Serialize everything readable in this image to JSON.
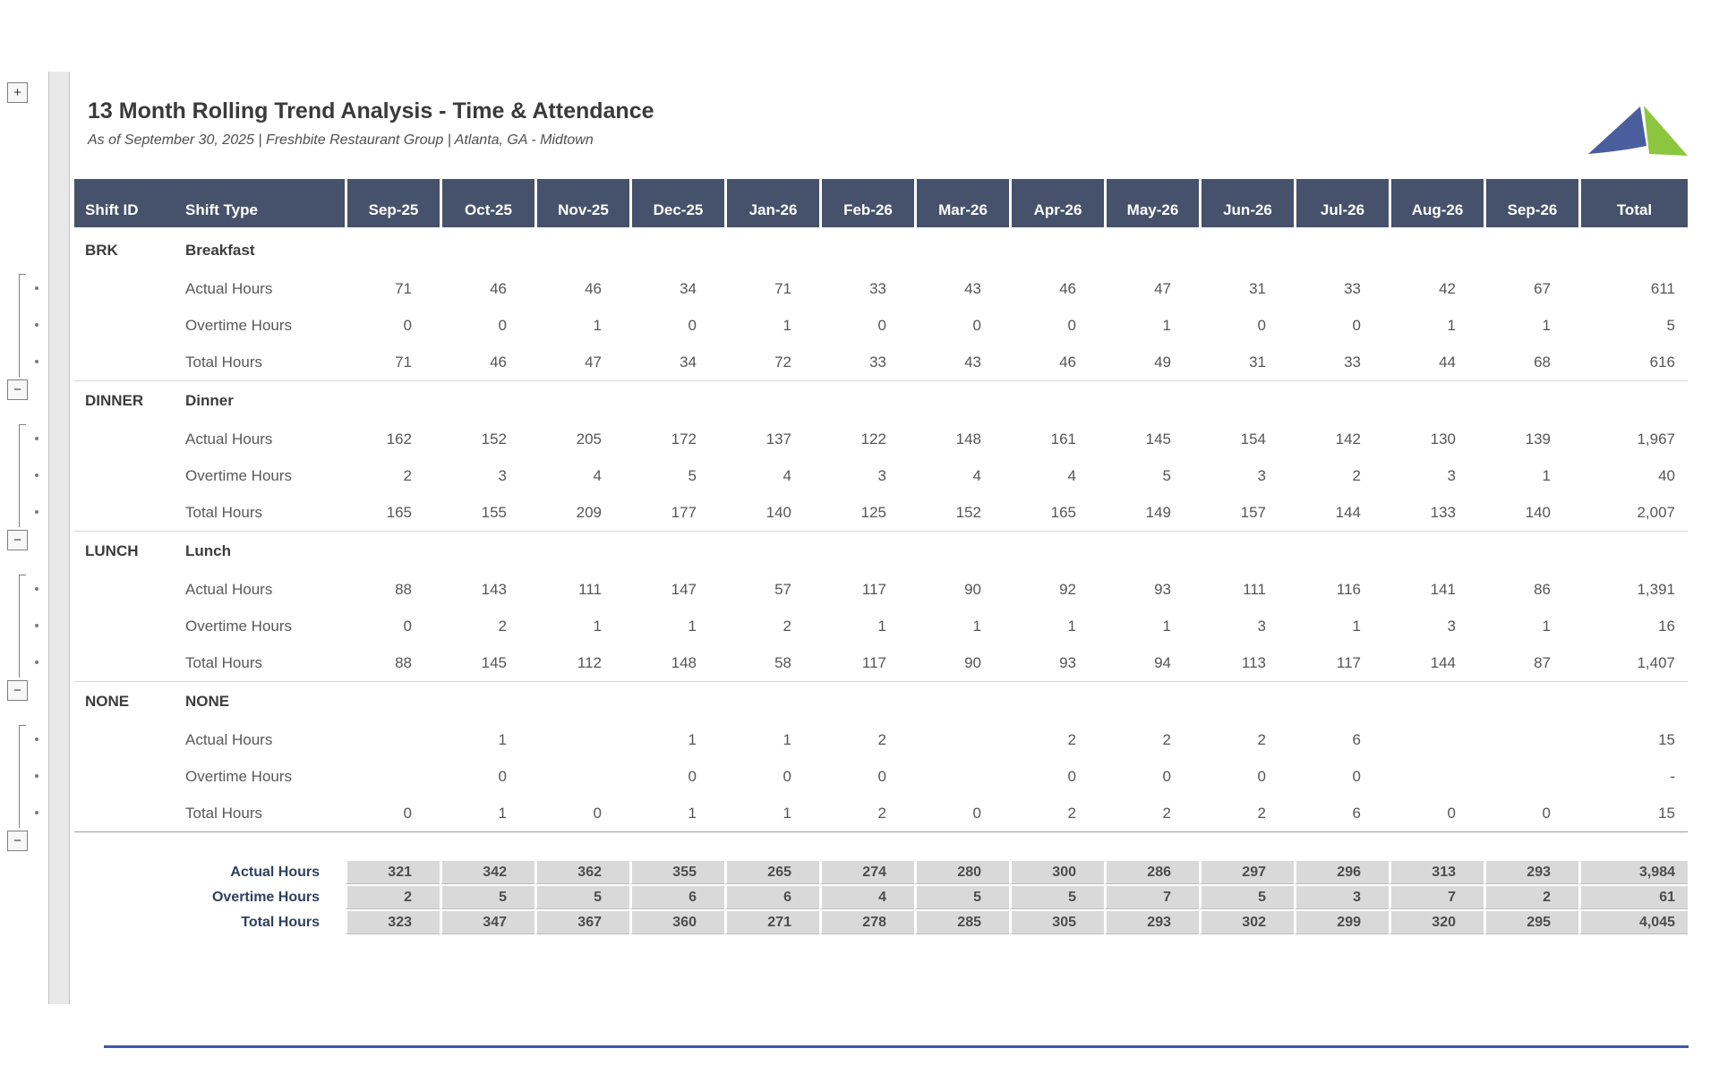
{
  "report": {
    "title": "13 Month Rolling Trend Analysis - Time & Attendance",
    "subtitle": "As of September 30, 2025 | Freshbite Restaurant Group | Atlanta, GA - Midtown"
  },
  "colors": {
    "header_bg": "#46526B",
    "summary_cell_bg": "#D9D9D9",
    "summary_label_text": "#2F4060",
    "logo_blue": "#4A5E9E",
    "logo_green": "#8CC63E",
    "bottom_rule_blue": "#3E5CA6"
  },
  "outline": {
    "expand_label": "+",
    "collapse_label": "−"
  },
  "table": {
    "header": {
      "shift_id": "Shift ID",
      "shift_type": "Shift Type",
      "months": [
        "Sep-25",
        "Oct-25",
        "Nov-25",
        "Dec-25",
        "Jan-26",
        "Feb-26",
        "Mar-26",
        "Apr-26",
        "May-26",
        "Jun-26",
        "Jul-26",
        "Aug-26",
        "Sep-26"
      ],
      "total": "Total"
    },
    "sections": [
      {
        "id": "BRK",
        "name": "Breakfast",
        "rows": [
          {
            "label": "Actual Hours",
            "values": [
              "71",
              "46",
              "46",
              "34",
              "71",
              "33",
              "43",
              "46",
              "47",
              "31",
              "33",
              "42",
              "67"
            ],
            "total": "611"
          },
          {
            "label": "Overtime Hours",
            "values": [
              "0",
              "0",
              "1",
              "0",
              "1",
              "0",
              "0",
              "0",
              "1",
              "0",
              "0",
              "1",
              "1"
            ],
            "total": "5"
          },
          {
            "label": "Total Hours",
            "values": [
              "71",
              "46",
              "47",
              "34",
              "72",
              "33",
              "43",
              "46",
              "49",
              "31",
              "33",
              "44",
              "68"
            ],
            "total": "616"
          }
        ]
      },
      {
        "id": "DINNER",
        "name": "Dinner",
        "rows": [
          {
            "label": "Actual Hours",
            "values": [
              "162",
              "152",
              "205",
              "172",
              "137",
              "122",
              "148",
              "161",
              "145",
              "154",
              "142",
              "130",
              "139"
            ],
            "total": "1,967"
          },
          {
            "label": "Overtime Hours",
            "values": [
              "2",
              "3",
              "4",
              "5",
              "4",
              "3",
              "4",
              "4",
              "5",
              "3",
              "2",
              "3",
              "1"
            ],
            "total": "40"
          },
          {
            "label": "Total Hours",
            "values": [
              "165",
              "155",
              "209",
              "177",
              "140",
              "125",
              "152",
              "165",
              "149",
              "157",
              "144",
              "133",
              "140"
            ],
            "total": "2,007"
          }
        ]
      },
      {
        "id": "LUNCH",
        "name": "Lunch",
        "rows": [
          {
            "label": "Actual Hours",
            "values": [
              "88",
              "143",
              "111",
              "147",
              "57",
              "117",
              "90",
              "92",
              "93",
              "111",
              "116",
              "141",
              "86"
            ],
            "total": "1,391"
          },
          {
            "label": "Overtime Hours",
            "values": [
              "0",
              "2",
              "1",
              "1",
              "2",
              "1",
              "1",
              "1",
              "1",
              "3",
              "1",
              "3",
              "1"
            ],
            "total": "16"
          },
          {
            "label": "Total Hours",
            "values": [
              "88",
              "145",
              "112",
              "148",
              "58",
              "117",
              "90",
              "93",
              "94",
              "113",
              "117",
              "144",
              "87"
            ],
            "total": "1,407"
          }
        ]
      },
      {
        "id": "NONE",
        "name": "NONE",
        "rows": [
          {
            "label": "Actual Hours",
            "values": [
              "",
              "1",
              "",
              "1",
              "1",
              "2",
              "",
              "2",
              "2",
              "2",
              "6",
              "",
              ""
            ],
            "total": "15"
          },
          {
            "label": "Overtime Hours",
            "values": [
              "",
              "0",
              "",
              "0",
              "0",
              "0",
              "",
              "0",
              "0",
              "0",
              "0",
              "",
              ""
            ],
            "total": "-"
          },
          {
            "label": "Total Hours",
            "values": [
              "0",
              "1",
              "0",
              "1",
              "1",
              "2",
              "0",
              "2",
              "2",
              "2",
              "6",
              "0",
              "0"
            ],
            "total": "15"
          }
        ]
      }
    ],
    "summary": [
      {
        "label": "Actual Hours",
        "values": [
          "321",
          "342",
          "362",
          "355",
          "265",
          "274",
          "280",
          "300",
          "286",
          "297",
          "296",
          "313",
          "293"
        ],
        "total": "3,984"
      },
      {
        "label": "Overtime Hours",
        "values": [
          "2",
          "5",
          "5",
          "6",
          "6",
          "4",
          "5",
          "5",
          "7",
          "5",
          "3",
          "7",
          "2"
        ],
        "total": "61"
      },
      {
        "label": "Total Hours",
        "values": [
          "323",
          "347",
          "367",
          "360",
          "271",
          "278",
          "285",
          "305",
          "293",
          "302",
          "299",
          "320",
          "295"
        ],
        "total": "4,045"
      }
    ]
  }
}
